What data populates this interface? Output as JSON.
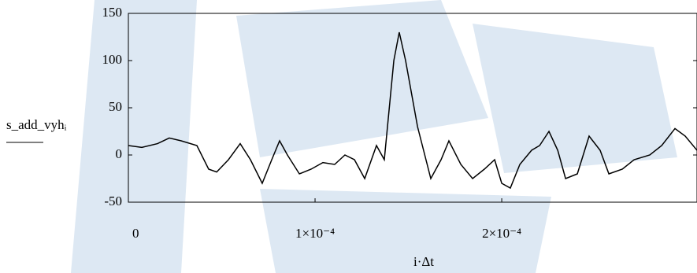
{
  "chart_data": {
    "type": "line",
    "x_label": "i·Δt",
    "y_label": "s_add_vyhᵢ",
    "xlim": [
      0,
      0.0003046
    ],
    "ylim": [
      -50,
      150
    ],
    "xticks": [
      0,
      {
        "value": 0.0001,
        "label": "1×10⁻⁴"
      },
      {
        "value": 0.0002,
        "label": "2×10⁻⁴"
      }
    ],
    "yticks": [
      150,
      100,
      50,
      0,
      -50
    ],
    "grid": false,
    "series": [
      {
        "color": "#000000",
        "x": [
          0,
          7.2e-06,
          1.56e-05,
          2.19e-05,
          2.83e-05,
          3.67e-05,
          4.3e-05,
          4.73e-05,
          5.36e-05,
          5.99e-05,
          6.54e-05,
          7.17e-05,
          7.68e-05,
          8.1e-05,
          8.52e-05,
          9.16e-05,
          9.79e-05,
          0.0001042,
          0.0001105,
          0.000116,
          0.0001211,
          0.0001266,
          0.0001329,
          0.0001371,
          0.0001422,
          0.0001451,
          0.0001485,
          0.0001549,
          0.000162,
          0.0001675,
          0.0001717,
          0.0001781,
          0.0001844,
          0.0001907,
          0.0001962,
          0.0002,
          0.0002046,
          0.0002097,
          0.000216,
          0.0002203,
          0.0002253,
          0.00023,
          0.0002342,
          0.0002405,
          0.0002468,
          0.0002527,
          0.0002574,
          0.0002646,
          0.0002709,
          0.0002793,
          0.0002857,
          0.0002928,
          0.0002983,
          0.0003046
        ],
        "values": [
          10,
          8,
          12,
          18,
          15,
          10,
          -15,
          -18,
          -5,
          12,
          -5,
          -30,
          -5,
          15,
          0,
          -20,
          -15,
          -8,
          -10,
          0,
          -5,
          -25,
          10,
          -5,
          100,
          130,
          100,
          30,
          -25,
          -5,
          15,
          -10,
          -25,
          -15,
          -5,
          -30,
          -35,
          -10,
          5,
          10,
          25,
          5,
          -25,
          -20,
          20,
          5,
          -20,
          -15,
          -5,
          0,
          10,
          28,
          20,
          5
        ]
      }
    ]
  }
}
